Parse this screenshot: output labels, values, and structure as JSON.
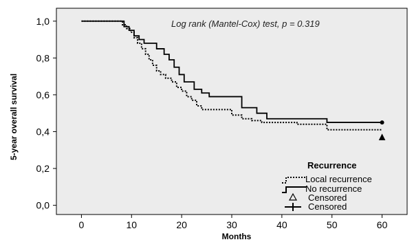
{
  "chart_data": {
    "type": "line",
    "title": "",
    "xlabel": "Months",
    "ylabel": "5-year overall survival",
    "xlim": [
      -5,
      65
    ],
    "ylim": [
      -0.05,
      1.07
    ],
    "x_ticks": [
      0,
      10,
      20,
      30,
      40,
      50,
      60
    ],
    "x_tick_labels": [
      "0",
      "10",
      "20",
      "30",
      "40",
      "50",
      "60"
    ],
    "y_ticks": [
      0,
      0.2,
      0.4,
      0.6,
      0.8,
      1.0
    ],
    "y_tick_labels": [
      "0,0",
      "0,2",
      "0,4",
      "0,6",
      "0,8",
      "1,0"
    ],
    "grid": false,
    "background": "#ececec",
    "annotation": "Log rank (Mantel-Cox) test, p = 0.319",
    "legend": {
      "title": "Recurrence",
      "placement": "bottom-right",
      "entries": [
        "Local recurrence",
        "No recurrence",
        "Censored",
        "Censored"
      ]
    },
    "series": [
      {
        "name": "Local recurrence",
        "style": "dotted",
        "censor_marker": "triangle",
        "step_x": [
          0,
          8.2,
          9.0,
          9.8,
          10.5,
          11.2,
          12.0,
          12.8,
          13.5,
          14.2,
          15.0,
          15.8,
          16.8,
          18.0,
          19.0,
          20.0,
          21.0,
          22.0,
          23.0,
          24.0,
          26.0,
          30.0,
          32.0,
          34.0,
          36.0,
          43.0,
          49.0,
          60.0
        ],
        "step_y": [
          1.0,
          0.98,
          0.96,
          0.94,
          0.91,
          0.88,
          0.85,
          0.82,
          0.79,
          0.76,
          0.73,
          0.71,
          0.69,
          0.67,
          0.64,
          0.62,
          0.59,
          0.57,
          0.54,
          0.52,
          0.52,
          0.49,
          0.47,
          0.46,
          0.45,
          0.44,
          0.41,
          0.41
        ],
        "censored_x": [
          60
        ],
        "censored_y": [
          0.37
        ]
      },
      {
        "name": "No recurrence",
        "style": "solid",
        "censor_marker": "cross",
        "step_x": [
          0,
          8.5,
          9.5,
          10.5,
          11.5,
          12.5,
          15.0,
          16.5,
          17.5,
          18.5,
          19.5,
          20.5,
          22.5,
          24.0,
          25.5,
          32.0,
          35.0,
          37.0,
          49.0,
          60.0
        ],
        "step_y": [
          1.0,
          0.97,
          0.95,
          0.92,
          0.9,
          0.88,
          0.85,
          0.82,
          0.79,
          0.75,
          0.71,
          0.67,
          0.63,
          0.61,
          0.59,
          0.53,
          0.5,
          0.47,
          0.45,
          0.45
        ],
        "censored_x": [
          60
        ],
        "censored_y": [
          0.45
        ]
      }
    ]
  }
}
